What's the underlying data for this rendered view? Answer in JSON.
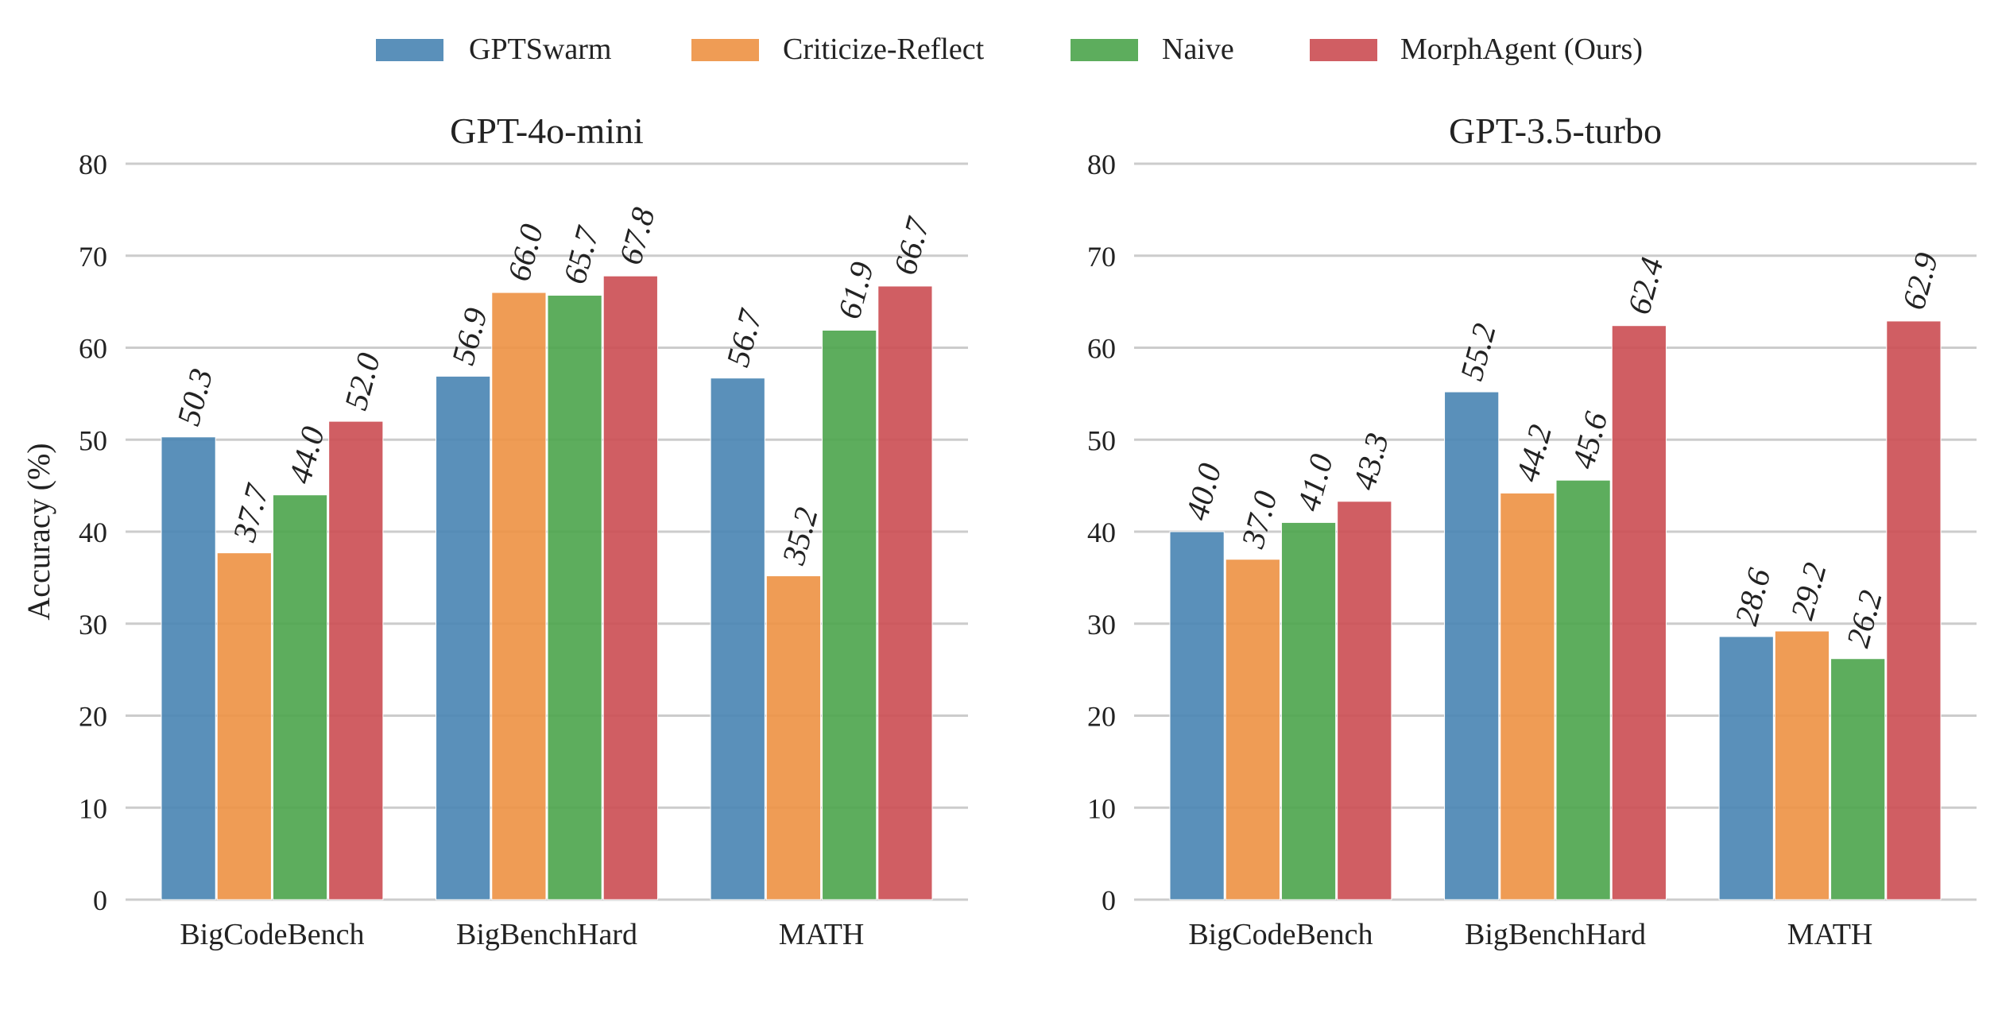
{
  "legend": [
    {
      "name": "GPTSwarm",
      "color": "#4C87B4"
    },
    {
      "name": "Criticize-Reflect",
      "color": "#EE9446"
    },
    {
      "name": "Naive",
      "color": "#4FA64F"
    },
    {
      "name": "MorphAgent (Ours)",
      "color": "#CC5056"
    }
  ],
  "chart_data": [
    {
      "type": "bar",
      "title": "GPT-4o-mini",
      "xlabel": "",
      "ylabel": "Accuracy (%)",
      "ylim": [
        0,
        80
      ],
      "yticks": [
        0,
        10,
        20,
        30,
        40,
        50,
        60,
        70,
        80
      ],
      "grid": true,
      "categories": [
        "BigCodeBench",
        "BigBenchHard",
        "MATH"
      ],
      "series": [
        {
          "name": "GPTSwarm",
          "values": [
            50.3,
            56.9,
            56.7
          ]
        },
        {
          "name": "Criticize-Reflect",
          "values": [
            37.7,
            66.0,
            35.2
          ]
        },
        {
          "name": "Naive",
          "values": [
            44.0,
            65.7,
            61.9
          ]
        },
        {
          "name": "MorphAgent (Ours)",
          "values": [
            52.0,
            67.8,
            66.7
          ]
        }
      ]
    },
    {
      "type": "bar",
      "title": "GPT-3.5-turbo",
      "xlabel": "",
      "ylabel": "",
      "ylim": [
        0,
        80
      ],
      "yticks": [
        0,
        10,
        20,
        30,
        40,
        50,
        60,
        70,
        80
      ],
      "grid": true,
      "categories": [
        "BigCodeBench",
        "BigBenchHard",
        "MATH"
      ],
      "series": [
        {
          "name": "GPTSwarm",
          "values": [
            40.0,
            55.2,
            28.6
          ]
        },
        {
          "name": "Criticize-Reflect",
          "values": [
            37.0,
            44.2,
            29.2
          ]
        },
        {
          "name": "Naive",
          "values": [
            41.0,
            45.6,
            26.2
          ]
        },
        {
          "name": "MorphAgent (Ours)",
          "values": [
            43.3,
            62.4,
            62.9
          ]
        }
      ]
    }
  ]
}
